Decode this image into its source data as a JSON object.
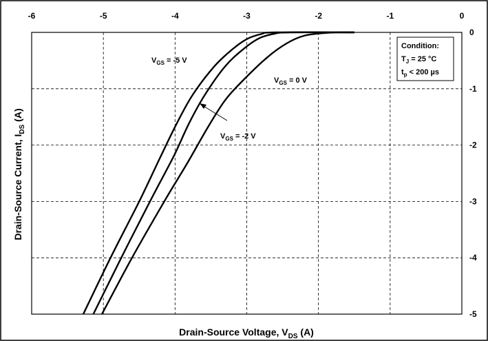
{
  "chart_data": {
    "type": "line",
    "title": "",
    "xlabel": {
      "main": "Drain-Source Voltage, V",
      "sub": "DS",
      "unit": " (A)"
    },
    "ylabel": {
      "main": "Drain-Source Current, I",
      "sub": "DS",
      "unit": " (A)"
    },
    "xlim": [
      -6,
      0
    ],
    "ylim": [
      -5,
      0
    ],
    "x_ticks": [
      "-6",
      "-5",
      "-4",
      "-3",
      "-2",
      "-1",
      "0"
    ],
    "y_ticks": [
      "0",
      "-1",
      "-2",
      "-3",
      "-4",
      "-5"
    ],
    "x_tick_position": "top",
    "y_tick_position": "right",
    "grid": true,
    "series": [
      {
        "name": "VGS = -5 V",
        "label": {
          "main": "V",
          "sub": "GS",
          "rest": " = -5 V"
        },
        "points": [
          [
            -5.28,
            -5.0
          ],
          [
            -4.9,
            -4.0
          ],
          [
            -4.5,
            -3.0
          ],
          [
            -4.2,
            -2.2
          ],
          [
            -3.97,
            -1.6
          ],
          [
            -3.75,
            -1.1
          ],
          [
            -3.45,
            -0.6
          ],
          [
            -3.2,
            -0.3
          ],
          [
            -3.0,
            -0.12
          ],
          [
            -2.8,
            -0.03
          ],
          [
            -2.6,
            0.0
          ],
          [
            -1.5,
            0.0
          ]
        ]
      },
      {
        "name": "VGS = -2 V",
        "label": {
          "main": "V",
          "sub": "GS",
          "rest": " = -2 V"
        },
        "points": [
          [
            -5.14,
            -5.0
          ],
          [
            -4.75,
            -4.0
          ],
          [
            -4.35,
            -3.0
          ],
          [
            -4.02,
            -2.2
          ],
          [
            -3.8,
            -1.6
          ],
          [
            -3.58,
            -1.1
          ],
          [
            -3.3,
            -0.6
          ],
          [
            -3.05,
            -0.3
          ],
          [
            -2.82,
            -0.1
          ],
          [
            -2.6,
            -0.02
          ],
          [
            -2.4,
            0.0
          ],
          [
            -1.5,
            0.0
          ]
        ]
      },
      {
        "name": "VGS = 0 V",
        "label": {
          "main": "V",
          "sub": "GS",
          "rest": " = 0 V"
        },
        "points": [
          [
            -5.02,
            -5.0
          ],
          [
            -4.6,
            -4.0
          ],
          [
            -4.15,
            -3.0
          ],
          [
            -3.82,
            -2.3
          ],
          [
            -3.55,
            -1.7
          ],
          [
            -3.3,
            -1.2
          ],
          [
            -3.05,
            -0.85
          ],
          [
            -2.72,
            -0.45
          ],
          [
            -2.45,
            -0.2
          ],
          [
            -2.2,
            -0.06
          ],
          [
            -1.9,
            -0.01
          ],
          [
            -1.7,
            0.0
          ],
          [
            -1.5,
            0.0
          ]
        ]
      }
    ],
    "annotation": {
      "title": "Condition:",
      "line1": {
        "main": "T",
        "sub": "J",
        "rest": " = 25 °C"
      },
      "line2": {
        "main": "t",
        "sub": "p",
        "rest": " < 200 µs"
      }
    }
  }
}
